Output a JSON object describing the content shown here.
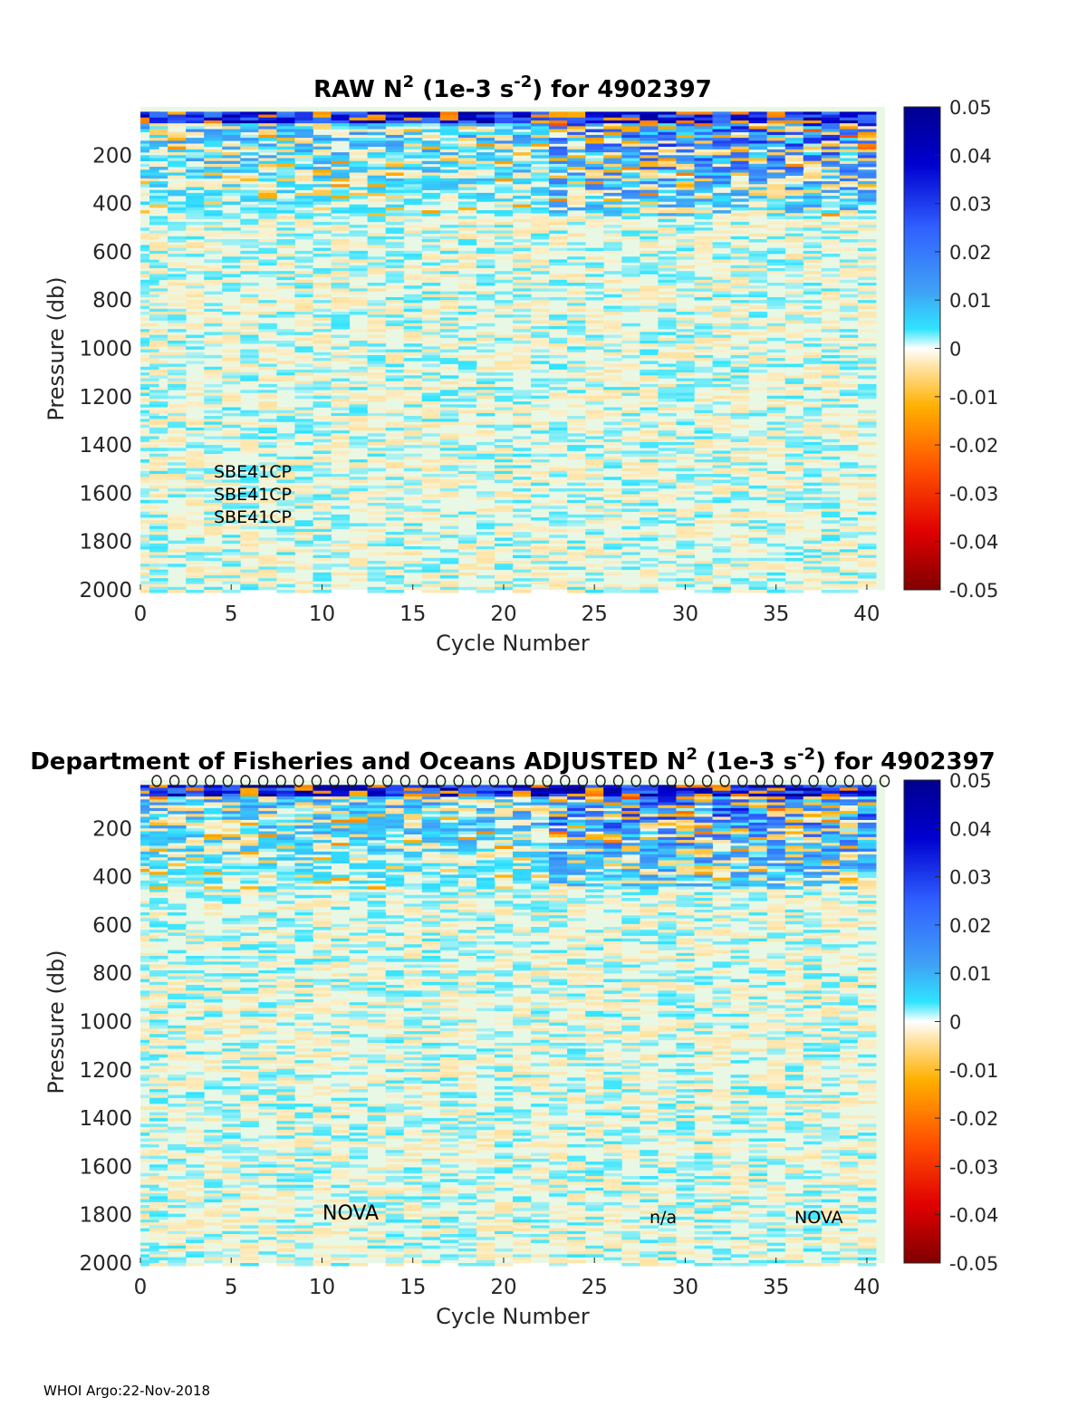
{
  "chart_data": [
    {
      "type": "heatmap",
      "title_prefix": "RAW N",
      "title_sup1": "2",
      "title_mid": " (1e-3 s",
      "title_sup2": "-2",
      "title_suffix": ") for 4902397",
      "xlabel": "Cycle Number",
      "ylabel": "Pressure (db)",
      "xlim": [
        0,
        41
      ],
      "ylim": [
        2000,
        0
      ],
      "xticks": [
        "0",
        "5",
        "10",
        "15",
        "20",
        "25",
        "30",
        "35",
        "40"
      ],
      "yticks": [
        "200",
        "400",
        "600",
        "800",
        "1000",
        "1200",
        "1400",
        "1600",
        "1800",
        "2000"
      ],
      "colorbar": {
        "range": [
          -0.05,
          0.05
        ],
        "ticks": [
          "0.05",
          "0.04",
          "0.03",
          "0.02",
          "0.01",
          "0",
          "-0.01",
          "-0.02",
          "-0.03",
          "-0.04",
          "-0.05"
        ]
      },
      "annotations": [
        "SBE41CP",
        "SBE41CP",
        "SBE41CP"
      ],
      "qc_markers": false
    },
    {
      "type": "heatmap",
      "title_prefix": "Department of Fisheries and Oceans  ADJUSTED N",
      "title_sup1": "2",
      "title_mid": " (1e-3 s",
      "title_sup2": "-2",
      "title_suffix": ") for 4902397",
      "xlabel": "Cycle Number",
      "ylabel": "Pressure (db)",
      "xlim": [
        0,
        41
      ],
      "ylim": [
        2000,
        0
      ],
      "xticks": [
        "0",
        "5",
        "10",
        "15",
        "20",
        "25",
        "30",
        "35",
        "40"
      ],
      "yticks": [
        "200",
        "400",
        "600",
        "800",
        "1000",
        "1200",
        "1400",
        "1600",
        "1800",
        "2000"
      ],
      "colorbar": {
        "range": [
          -0.05,
          0.05
        ],
        "ticks": [
          "0.05",
          "0.04",
          "0.03",
          "0.02",
          "0.01",
          "0",
          "-0.01",
          "-0.02",
          "-0.03",
          "-0.04",
          "-0.05"
        ]
      },
      "annotations": [
        "NOVA",
        "n/a",
        "NOVA"
      ],
      "qc_markers": true
    }
  ],
  "footer": "WHOI Argo:22-Nov-2018",
  "colors": {
    "axis_text": "#262626",
    "neutral": "#e9f8e4",
    "positive_max": "#00008f",
    "negative_max": "#800000"
  }
}
